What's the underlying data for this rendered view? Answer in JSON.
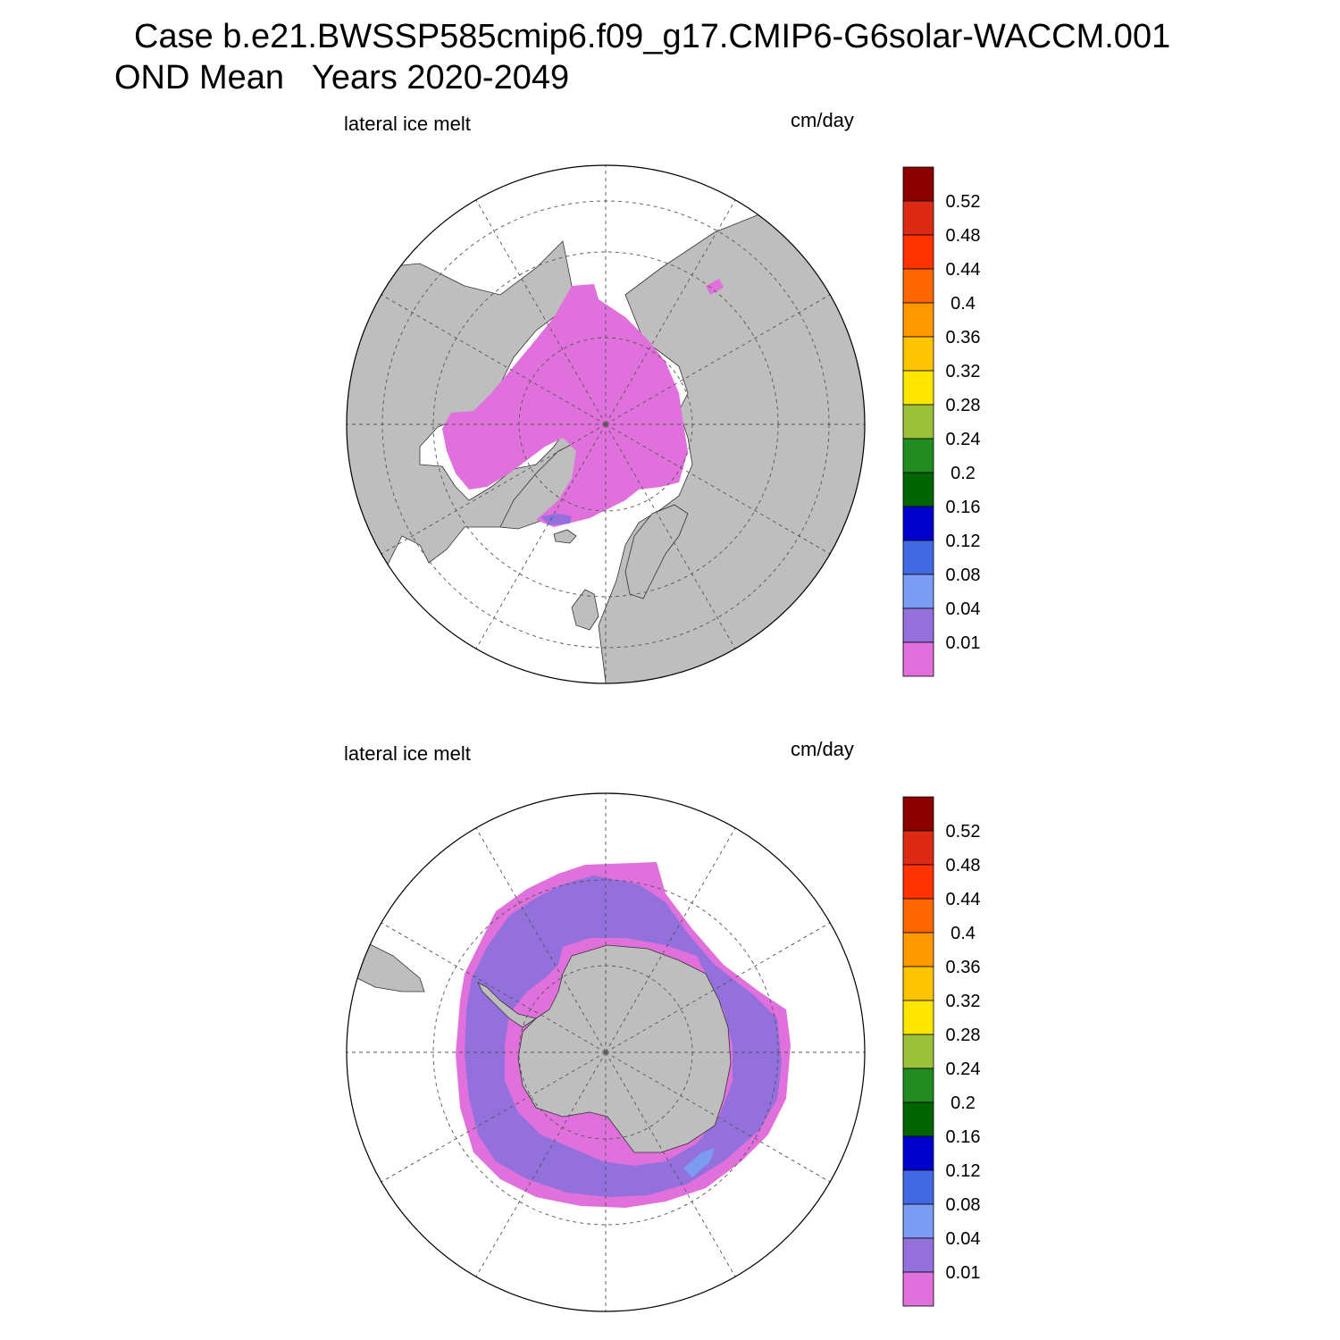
{
  "header": {
    "case_line": "Case b.e21.BWSSP585cmip6.f09_g17.CMIP6-G6solar-WACCM.001",
    "period_line": "OND Mean   Years 2020-2049"
  },
  "panels": [
    {
      "id": "north",
      "variable": "lateral ice melt",
      "units": "cm/day"
    },
    {
      "id": "south",
      "variable": "lateral ice melt",
      "units": "cm/day"
    }
  ],
  "colorbar": {
    "levels": [
      "0.52",
      "0.48",
      "0.44",
      "0.4",
      "0.36",
      "0.32",
      "0.28",
      "0.24",
      "0.2",
      "0.16",
      "0.12",
      "0.08",
      "0.04",
      "0.01"
    ],
    "colors": [
      "#8b0000",
      "#dc2a14",
      "#ff3300",
      "#ff6600",
      "#ff9900",
      "#ffc400",
      "#ffe600",
      "#9bc03a",
      "#228b22",
      "#006400",
      "#0000cd",
      "#4169e1",
      "#7b9cf2",
      "#9370db",
      "#e070dc"
    ]
  },
  "chart_data": {
    "type": "heatmap",
    "projection": "polar stereographic",
    "units": "cm/day",
    "contour_levels": [
      0.01,
      0.04,
      0.08,
      0.12,
      0.16,
      0.2,
      0.24,
      0.28,
      0.32,
      0.36,
      0.4,
      0.44,
      0.48,
      0.52
    ],
    "land_color": "#bebebe",
    "panels": [
      {
        "hemisphere": "north",
        "label": "lateral ice melt",
        "dominant_band": "<0.01",
        "minor_band": "0.01-0.04"
      },
      {
        "hemisphere": "south",
        "label": "lateral ice melt",
        "dominant_band": "0.01-0.04",
        "secondary_bands": [
          "<0.01",
          "0.04-0.08"
        ]
      }
    ]
  }
}
